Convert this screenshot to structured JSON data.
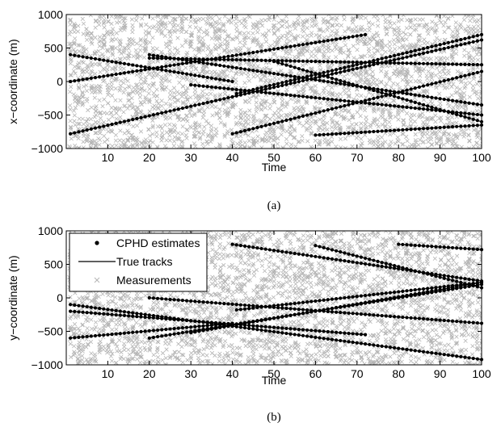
{
  "chart_data": [
    {
      "type": "scatter",
      "panel": "(a)",
      "xlabel": "Time",
      "ylabel": "x−coordinate (m)",
      "xlim": [
        0,
        100
      ],
      "ylim": [
        -1000,
        1000
      ],
      "xticks": [
        10,
        20,
        30,
        40,
        50,
        60,
        70,
        80,
        90,
        100
      ],
      "yticks": [
        -1000,
        -500,
        0,
        500,
        1000
      ],
      "xtick_labels": [
        "10",
        "20",
        "30",
        "40",
        "50",
        "60",
        "70",
        "80",
        "90",
        "100"
      ],
      "ytick_labels": [
        "−1000",
        "−500",
        "0",
        "500",
        "1000"
      ],
      "grid": false,
      "legend": null,
      "tracks": [
        {
          "x": [
            1,
            40
          ],
          "y": [
            400,
            0
          ]
        },
        {
          "x": [
            1,
            72
          ],
          "y": [
            0,
            700
          ]
        },
        {
          "x": [
            1,
            100
          ],
          "y": [
            -780,
            620
          ]
        },
        {
          "x": [
            20,
            100
          ],
          "y": [
            400,
            -350
          ]
        },
        {
          "x": [
            20,
            100
          ],
          "y": [
            350,
            250
          ]
        },
        {
          "x": [
            30,
            100
          ],
          "y": [
            -50,
            -500
          ]
        },
        {
          "x": [
            40,
            100
          ],
          "y": [
            -780,
            150
          ]
        },
        {
          "x": [
            41,
            100
          ],
          "y": [
            -180,
            700
          ]
        },
        {
          "x": [
            50,
            100
          ],
          "y": [
            300,
            -600
          ]
        },
        {
          "x": [
            60,
            100
          ],
          "y": [
            -800,
            -650
          ]
        }
      ]
    },
    {
      "type": "scatter",
      "panel": "(b)",
      "xlabel": "Time",
      "ylabel": "y−coordinate (m)",
      "xlim": [
        0,
        100
      ],
      "ylim": [
        -1000,
        1000
      ],
      "xticks": [
        10,
        20,
        30,
        40,
        50,
        60,
        70,
        80,
        90,
        100
      ],
      "yticks": [
        -1000,
        -500,
        0,
        500,
        1000
      ],
      "xtick_labels": [
        "10",
        "20",
        "30",
        "40",
        "50",
        "60",
        "70",
        "80",
        "90",
        "100"
      ],
      "ytick_labels": [
        "−1000",
        "−500",
        "0",
        "500",
        "1000"
      ],
      "grid": false,
      "legend": {
        "position": "top-left",
        "entries": [
          "CPHD estimates",
          "True tracks",
          "Measurements"
        ]
      },
      "tracks": [
        {
          "x": [
            1,
            40
          ],
          "y": [
            -600,
            -380
          ]
        },
        {
          "x": [
            1,
            72
          ],
          "y": [
            -200,
            -550
          ]
        },
        {
          "x": [
            1,
            100
          ],
          "y": [
            -100,
            -920
          ]
        },
        {
          "x": [
            20,
            100
          ],
          "y": [
            0,
            -380
          ]
        },
        {
          "x": [
            20,
            100
          ],
          "y": [
            -600,
            200
          ]
        },
        {
          "x": [
            30,
            100
          ],
          "y": [
            -520,
            230
          ]
        },
        {
          "x": [
            40,
            100
          ],
          "y": [
            800,
            250
          ]
        },
        {
          "x": [
            41,
            100
          ],
          "y": [
            -180,
            230
          ]
        },
        {
          "x": [
            60,
            100
          ],
          "y": [
            780,
            150
          ]
        },
        {
          "x": [
            80,
            100
          ],
          "y": [
            800,
            720
          ]
        }
      ]
    }
  ],
  "captions": [
    "(a)",
    "(b)"
  ],
  "colors": {
    "estimates": "#000000",
    "tracks": "#000000",
    "measurements": "#b4b4b4",
    "axes": "#000000",
    "background": "#ffffff"
  }
}
